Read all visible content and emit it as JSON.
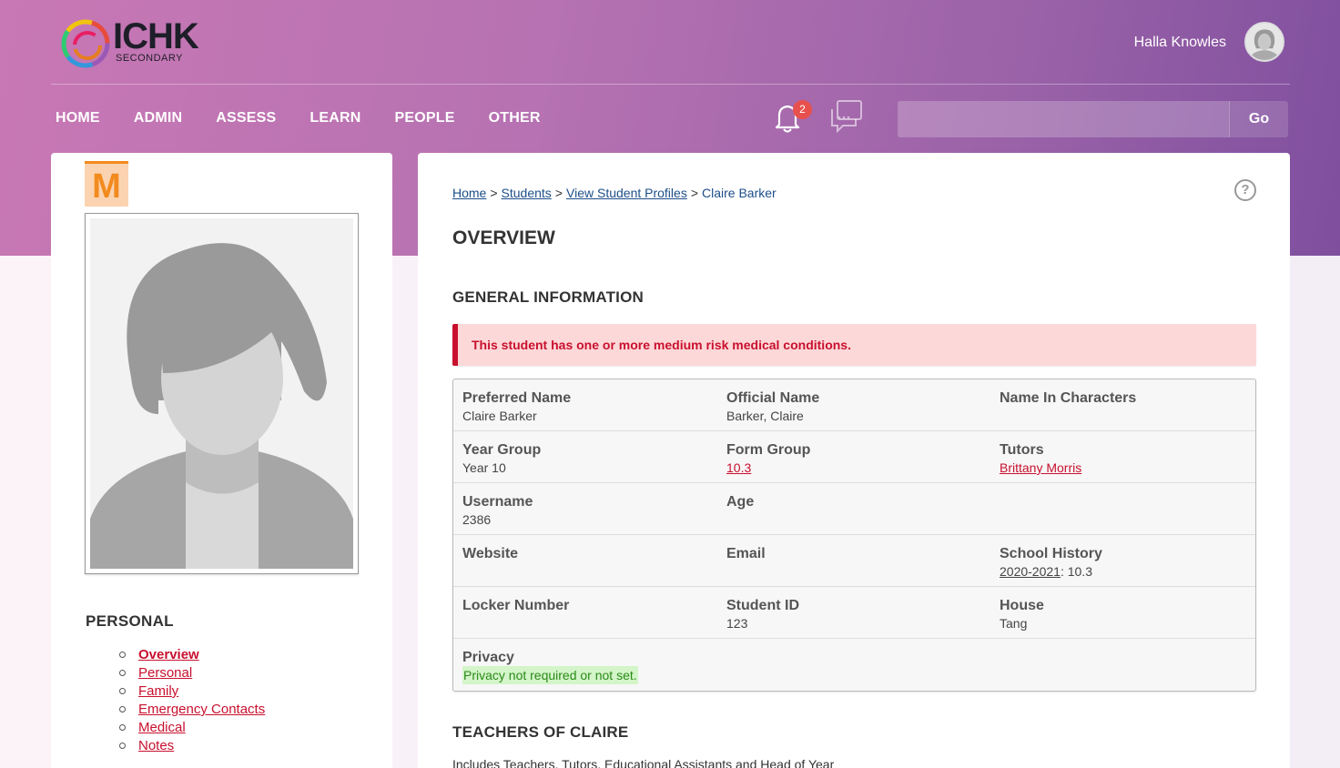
{
  "header": {
    "logo_title": "ICHK",
    "logo_sub": "SECONDARY",
    "user_name": "Halla Knowles",
    "nav": [
      "HOME",
      "ADMIN",
      "ASSESS",
      "LEARN",
      "PEOPLE",
      "OTHER"
    ],
    "notification_count": "2",
    "search_placeholder": "",
    "search_button": "Go"
  },
  "sidebar": {
    "house_letter": "M",
    "heading": "PERSONAL",
    "links": [
      "Overview",
      "Personal",
      "Family",
      "Emergency Contacts",
      "Medical",
      "Notes"
    ],
    "active_link": "Overview"
  },
  "breadcrumb": {
    "home": "Home",
    "students": "Students",
    "profiles": "View Student Profiles",
    "current": "Claire Barker",
    "sep": ">"
  },
  "main": {
    "title": "OVERVIEW",
    "general_heading": "GENERAL INFORMATION",
    "alert": "This student has one or more medium risk medical conditions.",
    "teachers_heading": "TEACHERS OF CLAIRE",
    "teachers_sub": "Includes Teachers, Tutors, Educational Assistants and Head of Year"
  },
  "info": {
    "preferred_name": {
      "label": "Preferred Name",
      "value": "Claire Barker"
    },
    "official_name": {
      "label": "Official Name",
      "value": "Barker, Claire"
    },
    "name_in_characters": {
      "label": "Name In Characters",
      "value": ""
    },
    "year_group": {
      "label": "Year Group",
      "value": "Year 10"
    },
    "form_group": {
      "label": "Form Group",
      "value": "10.3"
    },
    "tutors": {
      "label": "Tutors",
      "value": "Brittany Morris"
    },
    "username": {
      "label": "Username",
      "value": "2386"
    },
    "age": {
      "label": "Age",
      "value": ""
    },
    "website": {
      "label": "Website",
      "value": ""
    },
    "email": {
      "label": "Email",
      "value": ""
    },
    "school_history": {
      "label": "School History",
      "year": "2020-2021",
      "value": ": 10.3"
    },
    "locker_number": {
      "label": "Locker Number",
      "value": ""
    },
    "student_id": {
      "label": "Student ID",
      "value": "123"
    },
    "house": {
      "label": "House",
      "value": "Tang"
    },
    "privacy": {
      "label": "Privacy",
      "value": "Privacy not required or not set."
    }
  },
  "colors": {
    "accent": "#c8102e",
    "link_blue": "#1d4e89",
    "house_orange": "#f28b1e",
    "header_start": "#c878b4",
    "header_end": "#7f4f9e"
  }
}
